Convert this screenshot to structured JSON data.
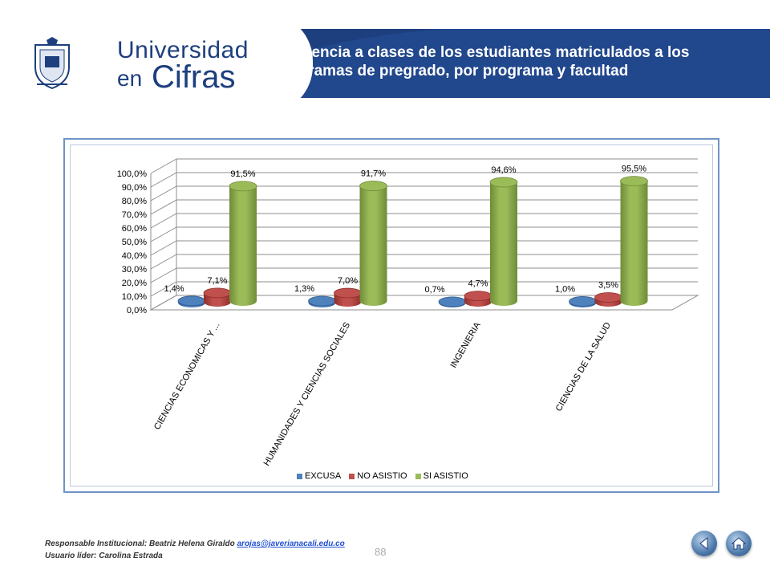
{
  "header": {
    "brand_line1": "Universidad",
    "brand_line2a": "en",
    "brand_line2b": "Cifras",
    "title": "Asistencia a clases de los estudiantes matriculados a los programas de pregrado, por programa y facultad"
  },
  "colors": {
    "banner": "#1d3f7e",
    "excusa": "#4f81bd",
    "no_asistio": "#c0504d",
    "si_asistio": "#9bbb59"
  },
  "chart_data": {
    "type": "bar",
    "categories": [
      "CIENCIAS ECONOMICAS Y ...",
      "HUMANIDADES Y CIENCIAS SOCIALES",
      "INGENIERIA",
      "CIENCIAS DE LA SALUD"
    ],
    "series": [
      {
        "name": "EXCUSA",
        "values": [
          1.4,
          1.3,
          0.7,
          1.0
        ],
        "labels": [
          "1,4%",
          "1,3%",
          "0,7%",
          "1,0%"
        ]
      },
      {
        "name": "NO ASISTIO",
        "values": [
          7.1,
          7.0,
          4.7,
          3.5
        ],
        "labels": [
          "7,1%",
          "7,0%",
          "4,7%",
          "3,5%"
        ]
      },
      {
        "name": "SI ASISTIO",
        "values": [
          91.5,
          91.7,
          94.6,
          95.5
        ],
        "labels": [
          "91,5%",
          "91,7%",
          "94,6%",
          "95,5%"
        ]
      }
    ],
    "y_ticks": [
      "0,0%",
      "10,0%",
      "20,0%",
      "30,0%",
      "40,0%",
      "50,0%",
      "60,0%",
      "70,0%",
      "80,0%",
      "90,0%",
      "100,0%"
    ],
    "ylim": [
      0,
      100
    ],
    "grid": true,
    "legend_position": "bottom",
    "three_d": true
  },
  "footer": {
    "responsible_label": "Responsable Institucional: Beatriz Helena Giraldo",
    "email": "arojas@javerianacali.edu.co",
    "leader": "Usuario líder: Carolina Estrada",
    "page_number": "88"
  },
  "nav": {
    "back_icon": "back-arrow-icon",
    "home_icon": "home-icon"
  }
}
